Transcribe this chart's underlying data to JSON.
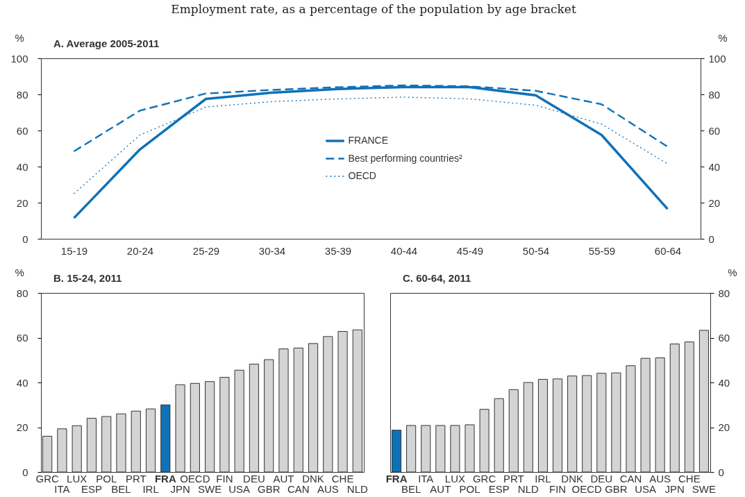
{
  "chart_data": [
    {
      "type": "line",
      "subtitle": "Employment rate, as a percentage of the population by age bracket",
      "title": "A. Average 2005-2011",
      "ylabel": "%",
      "y2label": "%",
      "categories": [
        "15-19",
        "20-24",
        "25-29",
        "30-34",
        "35-39",
        "40-44",
        "45-49",
        "50-54",
        "55-59",
        "60-64"
      ],
      "series": [
        {
          "name": "FRANCE",
          "color": "#0f71b8",
          "line_style": "solid",
          "values": [
            11.5,
            49.5,
            77.5,
            81,
            83,
            84,
            84,
            79.5,
            57.5,
            16.5
          ]
        },
        {
          "name": "Best performing countries²",
          "color": "#0f71b8",
          "line_style": "dashed",
          "values": [
            48.5,
            71,
            80.5,
            82.5,
            84,
            85,
            84.5,
            82,
            74.5,
            51
          ]
        },
        {
          "name": "OECD",
          "color": "#0f71b8",
          "line_style": "dotted",
          "values": [
            25,
            57.5,
            73,
            76,
            77.5,
            78.5,
            77.5,
            74,
            63.5,
            41.5
          ]
        }
      ],
      "ylim": [
        0,
        100
      ],
      "yticks": [
        0,
        20,
        40,
        60,
        80,
        100
      ],
      "y2lim": [
        0,
        100
      ],
      "y2ticks": [
        0,
        20,
        40,
        60,
        80,
        100
      ],
      "legend": "center",
      "grid": false,
      "marker": "none"
    },
    {
      "type": "bar",
      "title": "B. 15-24, 2011",
      "ylabel": "%",
      "categories": [
        "GRC",
        "ITA",
        "LUX",
        "ESP",
        "POL",
        "BEL",
        "PRT",
        "IRL",
        "FRA",
        "JPN",
        "OECD",
        "SWE",
        "FIN",
        "USA",
        "DEU",
        "GBR",
        "AUT",
        "CAN",
        "DNK",
        "AUS",
        "CHE",
        "NLD"
      ],
      "values": [
        16,
        19.3,
        20.7,
        24,
        24.8,
        26,
        27.2,
        28.2,
        30,
        39,
        39.6,
        40.4,
        42.3,
        45.5,
        48.2,
        50.2,
        55,
        55.4,
        57.4,
        60.5,
        62.8,
        63.5
      ],
      "colors": [
        "#d3d4d6",
        "#d3d4d6",
        "#d3d4d6",
        "#d3d4d6",
        "#d3d4d6",
        "#d3d4d6",
        "#d3d4d6",
        "#d3d4d6",
        "#0f71b8",
        "#d3d4d6",
        "#d3d4d6",
        "#d3d4d6",
        "#d3d4d6",
        "#d3d4d6",
        "#d3d4d6",
        "#d3d4d6",
        "#d3d4d6",
        "#d3d4d6",
        "#d3d4d6",
        "#d3d4d6",
        "#d3d4d6",
        "#d3d4d6"
      ],
      "ylim": [
        0,
        80
      ],
      "yticks": [
        0,
        20,
        40,
        60,
        80
      ],
      "grid": false,
      "legend": false
    },
    {
      "type": "bar",
      "title": "C. 60-64, 2011",
      "y2label": "%",
      "categories": [
        "FRA",
        "BEL",
        "ITA",
        "AUT",
        "LUX",
        "POL",
        "GRC",
        "ESP",
        "PRT",
        "NLD",
        "IRL",
        "FIN",
        "DNK",
        "OECD",
        "DEU",
        "GBR",
        "CAN",
        "USA",
        "AUS",
        "JPN",
        "CHE",
        "SWE"
      ],
      "series": [
        {
          "axis": "y2",
          "values": [
            18.7,
            20.8,
            20.8,
            20.8,
            20.8,
            21.1,
            28,
            32.8,
            36.8,
            40,
            41.4,
            41.6,
            42.9,
            43.1,
            44.1,
            44.3,
            47.5,
            50.8,
            51,
            57.2,
            58.1,
            63.3
          ],
          "colors": [
            "#0f71b8",
            "#d3d4d6",
            "#d3d4d6",
            "#d3d4d6",
            "#d3d4d6",
            "#d3d4d6",
            "#d3d4d6",
            "#d3d4d6",
            "#d3d4d6",
            "#d3d4d6",
            "#d3d4d6",
            "#d3d4d6",
            "#d3d4d6",
            "#d3d4d6",
            "#d3d4d6",
            "#d3d4d6",
            "#d3d4d6",
            "#d3d4d6",
            "#d3d4d6",
            "#d3d4d6",
            "#d3d4d6",
            "#d3d4d6"
          ]
        }
      ],
      "y2lim": [
        0,
        80
      ],
      "y2ticks": [
        0,
        20,
        40,
        60,
        80
      ],
      "grid": false,
      "legend": false
    }
  ]
}
